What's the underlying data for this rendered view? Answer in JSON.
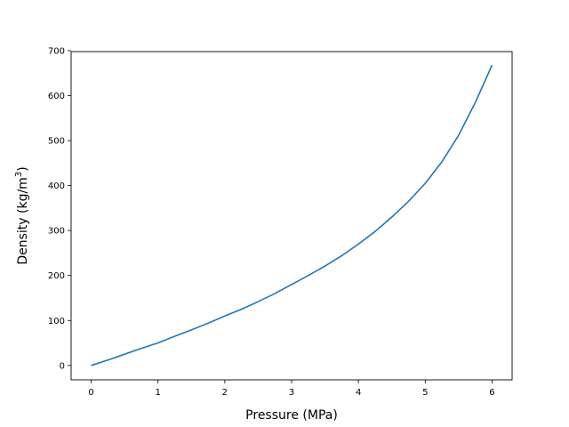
{
  "chart_data": {
    "type": "line",
    "title": "",
    "xlabel": "Pressure (MPa)",
    "ylabel_main": "Density (kg/m",
    "ylabel_sup": "3",
    "ylabel_close": ")",
    "xlim": [
      -0.3,
      6.3
    ],
    "ylim": [
      -32,
      698
    ],
    "xticks": [
      0,
      1,
      2,
      3,
      4,
      5,
      6
    ],
    "yticks": [
      0,
      100,
      200,
      300,
      400,
      500,
      600,
      700
    ],
    "grid": false,
    "series": [
      {
        "color": "#1f77b4",
        "x": [
          0,
          0.25,
          0.5,
          0.75,
          1.0,
          1.25,
          1.5,
          1.75,
          2.0,
          2.25,
          2.5,
          2.75,
          3.0,
          3.25,
          3.5,
          3.75,
          4.0,
          4.25,
          4.5,
          4.75,
          5.0,
          5.25,
          5.5,
          5.75,
          6.0
        ],
        "y": [
          0,
          12,
          25,
          38,
          50,
          65,
          79,
          94,
          110,
          125,
          142,
          160,
          180,
          200,
          221,
          244,
          270,
          298,
          330,
          365,
          405,
          453,
          512,
          585,
          668
        ]
      }
    ]
  }
}
